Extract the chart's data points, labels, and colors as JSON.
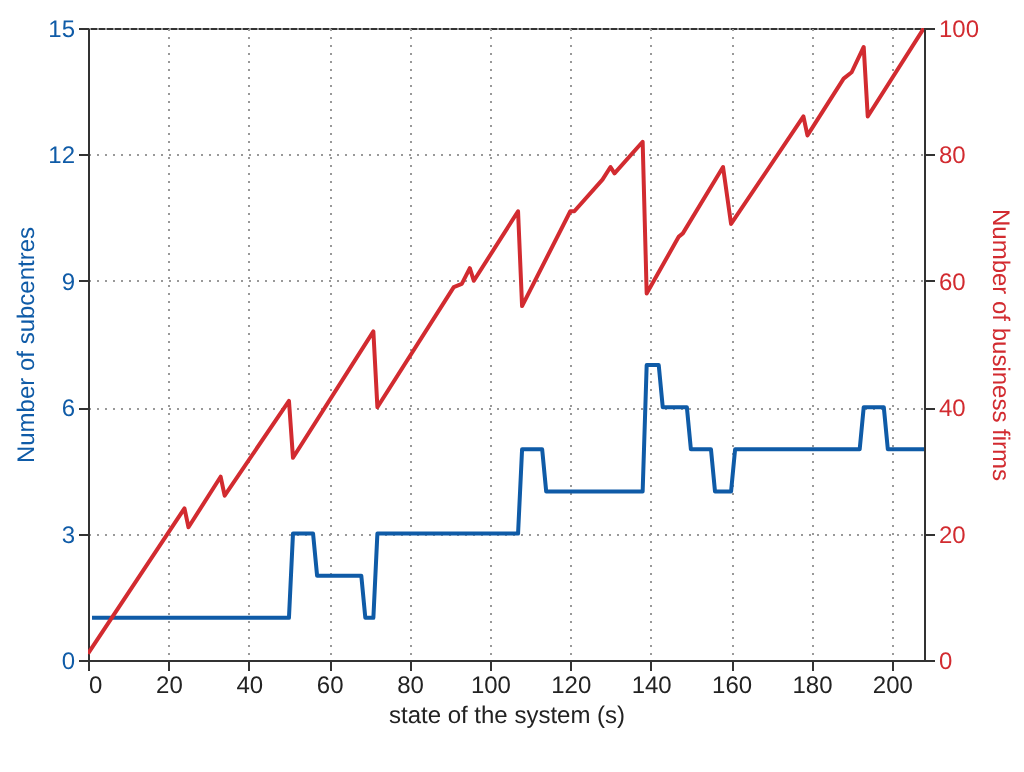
{
  "chart_data": {
    "type": "line",
    "xlabel": "state of the system (s)",
    "ylabel": "Number of subcentres",
    "y2label": "Number of business firms",
    "xlim": [
      0,
      208
    ],
    "xticks": [
      0,
      20,
      40,
      60,
      80,
      100,
      120,
      140,
      160,
      180,
      200
    ],
    "ylim": [
      0,
      15
    ],
    "yticks": [
      0,
      3,
      6,
      9,
      12,
      15
    ],
    "y2lim": [
      0,
      100
    ],
    "y2ticks": [
      0,
      20,
      40,
      60,
      80,
      100
    ],
    "grid": true,
    "line_style": "solid",
    "series": [
      {
        "color": "#0f5ba7",
        "x": [
          1,
          50,
          51,
          56,
          57,
          68,
          69,
          71,
          72,
          107,
          108,
          113,
          114,
          138,
          139,
          142,
          143,
          149,
          150,
          155,
          156,
          160,
          161,
          192,
          193,
          198,
          199,
          208
        ],
        "values": [
          1,
          1,
          3,
          3,
          2,
          2,
          1,
          1,
          3,
          3,
          5,
          5,
          4,
          4,
          7,
          7,
          6,
          6,
          5,
          5,
          4,
          4,
          5,
          5,
          6,
          6,
          5,
          5
        ]
      },
      {
        "color": "#d22b30",
        "axis": "y2",
        "x": [
          0,
          24,
          25,
          33,
          34,
          50,
          51,
          71,
          72,
          91,
          93,
          95,
          96,
          107,
          108,
          120,
          121,
          128,
          130,
          131,
          138,
          139,
          147,
          148,
          158,
          160,
          178,
          179,
          188,
          190,
          193,
          194,
          208
        ],
        "values": [
          1,
          24,
          21,
          29,
          26,
          41,
          32,
          52,
          40,
          59,
          59.5,
          62,
          60,
          71,
          56,
          71,
          71,
          76,
          78,
          77,
          82,
          58,
          67,
          67.5,
          78,
          69,
          86,
          83,
          92,
          93,
          97,
          86,
          100
        ]
      }
    ]
  }
}
